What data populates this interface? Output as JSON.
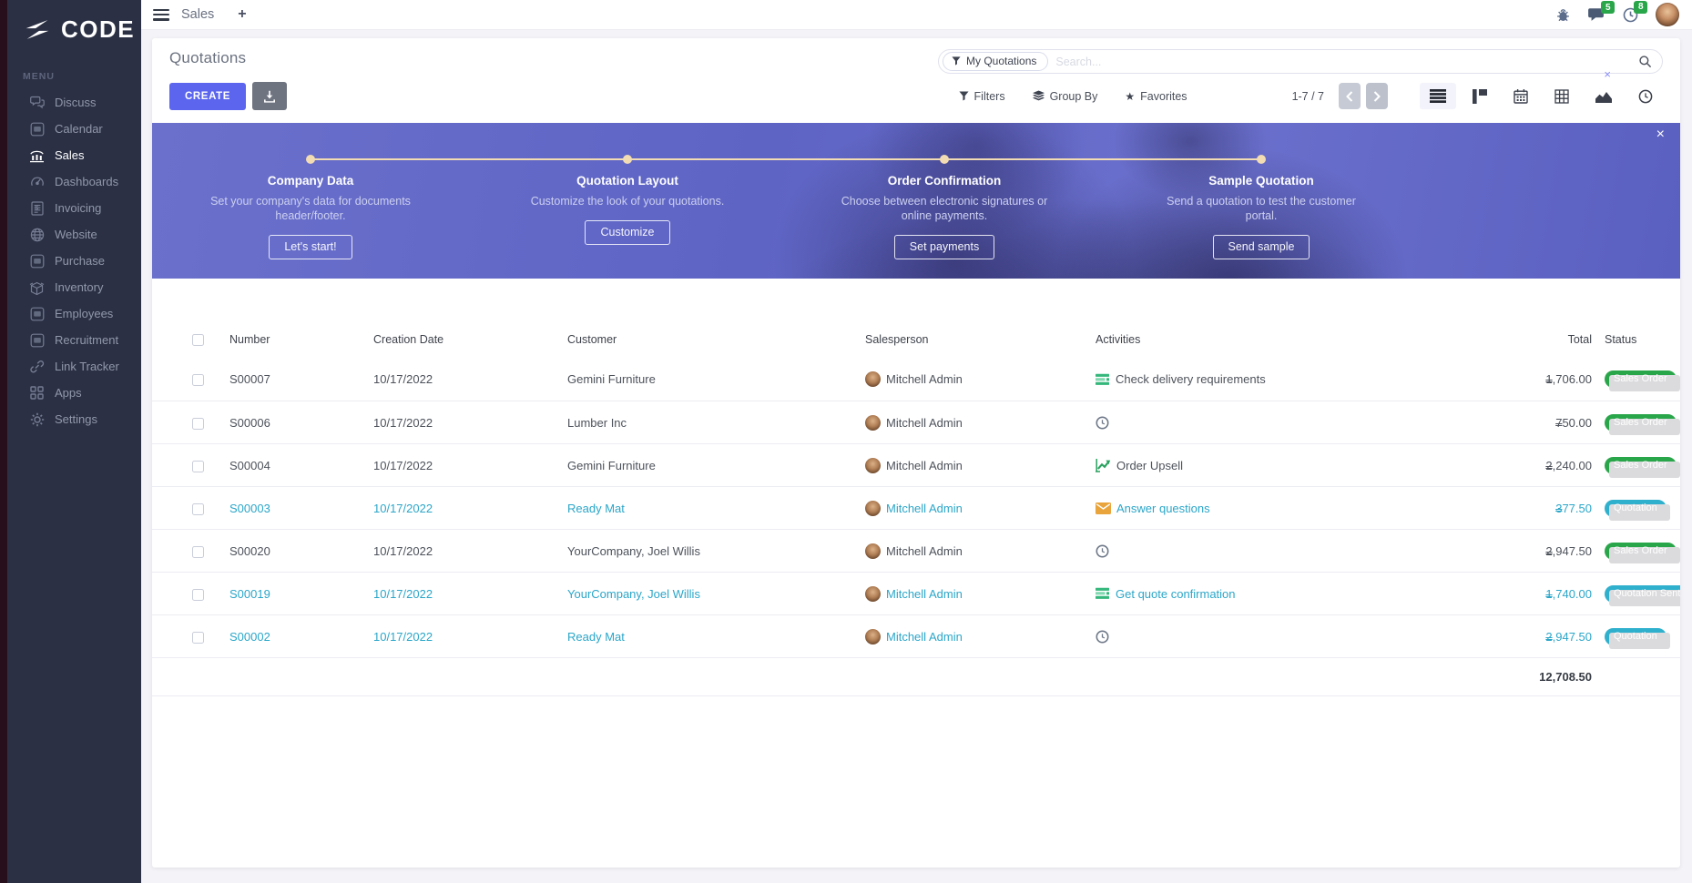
{
  "brand": {
    "name": "CODE"
  },
  "topbar": {
    "app_tab": "Sales",
    "new_tab": "+",
    "messages_count": "5",
    "activities_count": "8"
  },
  "sidebar": {
    "menu_label": "MENU",
    "items": [
      {
        "label": "Discuss",
        "icon": "discuss-icon",
        "active": false
      },
      {
        "label": "Calendar",
        "icon": "calendar-app-icon",
        "active": false
      },
      {
        "label": "Sales",
        "icon": "sales-icon",
        "active": true
      },
      {
        "label": "Dashboards",
        "icon": "dashboards-icon",
        "active": false
      },
      {
        "label": "Invoicing",
        "icon": "invoicing-icon",
        "active": false
      },
      {
        "label": "Website",
        "icon": "website-icon",
        "active": false
      },
      {
        "label": "Purchase",
        "icon": "purchase-icon",
        "active": false
      },
      {
        "label": "Inventory",
        "icon": "inventory-icon",
        "active": false
      },
      {
        "label": "Employees",
        "icon": "employees-icon",
        "active": false
      },
      {
        "label": "Recruitment",
        "icon": "recruitment-icon",
        "active": false
      },
      {
        "label": "Link Tracker",
        "icon": "link-tracker-icon",
        "active": false
      },
      {
        "label": "Apps",
        "icon": "apps-icon",
        "active": false
      },
      {
        "label": "Settings",
        "icon": "settings-icon",
        "active": false
      }
    ]
  },
  "control_panel": {
    "title": "Quotations",
    "search": {
      "facet_label": "My Quotations",
      "placeholder": "Search...",
      "remove_facet": "×"
    },
    "create_label": "CREATE",
    "filters_label": "Filters",
    "group_by_label": "Group By",
    "favorites_label": "Favorites",
    "pager": "1-7 / 7",
    "views": [
      {
        "name": "list",
        "active": true
      },
      {
        "name": "kanban",
        "active": false
      },
      {
        "name": "calendar",
        "active": false
      },
      {
        "name": "pivot",
        "active": false
      },
      {
        "name": "graph",
        "active": false
      },
      {
        "name": "activity",
        "active": false
      }
    ]
  },
  "banner": {
    "close_label": "×",
    "steps": [
      {
        "title": "Company Data",
        "description": "Set your company's data for documents header/footer.",
        "button": "Let's start!"
      },
      {
        "title": "Quotation Layout",
        "description": "Customize the look of your quotations.",
        "button": "Customize"
      },
      {
        "title": "Order Confirmation",
        "description": "Choose between electronic signatures or online payments.",
        "button": "Set payments"
      },
      {
        "title": "Sample Quotation",
        "description": "Send a quotation to test the customer portal.",
        "button": "Send sample"
      }
    ]
  },
  "table": {
    "columns": [
      "Number",
      "Creation Date",
      "Customer",
      "Salesperson",
      "Activities",
      "Total",
      "Status"
    ],
    "rows": [
      {
        "number": "S00007",
        "creation_date": "10/17/2022",
        "customer": "Gemini Furniture",
        "salesperson": "Mitchell Admin",
        "activity": {
          "icon": "tasks-icon",
          "label": "Check delivery requirements"
        },
        "total": "1,706.00",
        "status": {
          "label": "Sales Order",
          "type": "success"
        },
        "highlighted": false
      },
      {
        "number": "S00006",
        "creation_date": "10/17/2022",
        "customer": "Lumber Inc",
        "salesperson": "Mitchell Admin",
        "activity": {
          "icon": "clock-icon",
          "label": ""
        },
        "total": "750.00",
        "status": {
          "label": "Sales Order",
          "type": "success"
        },
        "highlighted": false
      },
      {
        "number": "S00004",
        "creation_date": "10/17/2022",
        "customer": "Gemini Furniture",
        "salesperson": "Mitchell Admin",
        "activity": {
          "icon": "chart-up-icon",
          "label": "Order Upsell"
        },
        "total": "2,240.00",
        "status": {
          "label": "Sales Order",
          "type": "success"
        },
        "highlighted": false
      },
      {
        "number": "S00003",
        "creation_date": "10/17/2022",
        "customer": "Ready Mat",
        "salesperson": "Mitchell Admin",
        "activity": {
          "icon": "email-icon",
          "label": "Answer questions"
        },
        "total": "377.50",
        "status": {
          "label": "Quotation",
          "type": "info"
        },
        "highlighted": true
      },
      {
        "number": "S00020",
        "creation_date": "10/17/2022",
        "customer": "YourCompany, Joel Willis",
        "salesperson": "Mitchell Admin",
        "activity": {
          "icon": "clock-icon",
          "label": ""
        },
        "total": "2,947.50",
        "status": {
          "label": "Sales Order",
          "type": "success"
        },
        "highlighted": false
      },
      {
        "number": "S00019",
        "creation_date": "10/17/2022",
        "customer": "YourCompany, Joel Willis",
        "salesperson": "Mitchell Admin",
        "activity": {
          "icon": "tasks-icon",
          "label": "Get quote confirmation"
        },
        "total": "1,740.00",
        "status": {
          "label": "Quotation Sent",
          "type": "info"
        },
        "highlighted": true
      },
      {
        "number": "S00002",
        "creation_date": "10/17/2022",
        "customer": "Ready Mat",
        "salesperson": "Mitchell Admin",
        "activity": {
          "icon": "clock-icon",
          "label": ""
        },
        "total": "2,947.50",
        "status": {
          "label": "Quotation",
          "type": "info"
        },
        "highlighted": true
      }
    ],
    "sum_total": "12,708.50"
  },
  "colors": {
    "accent": "#5b65ee",
    "sidebar_bg": "#2b3044",
    "badge_success": "#2aa64a",
    "badge_info": "#2fb0cd",
    "highlight_text": "#2ba6c9",
    "banner_cream": "#f2dcb3"
  }
}
